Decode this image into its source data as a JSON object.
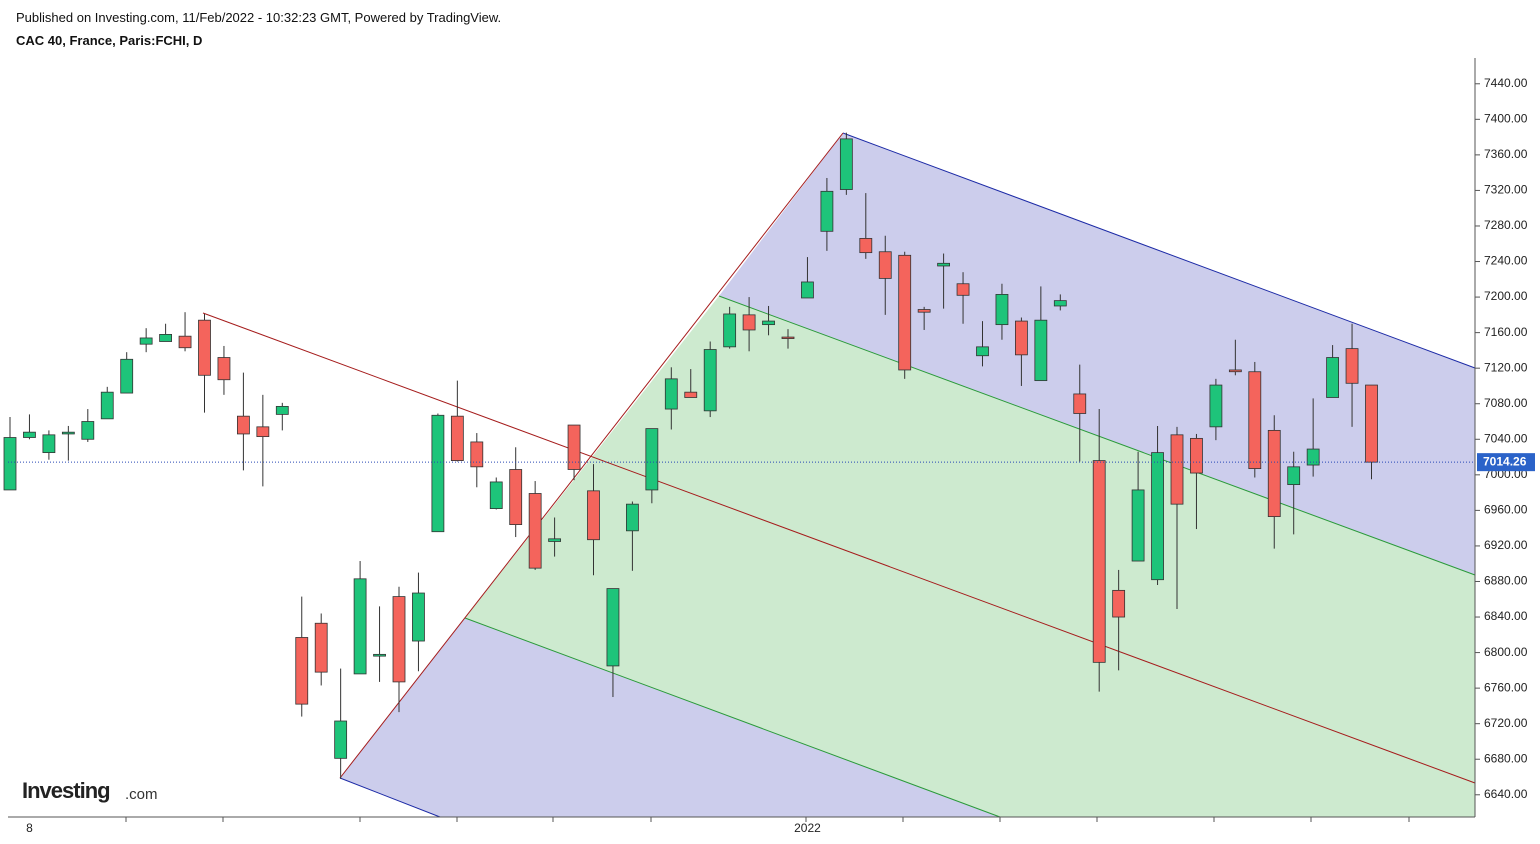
{
  "chart_data": {
    "type": "candlestick",
    "published": "Published on Investing.com, 11/Feb/2022 - 10:32:23 GMT, Powered by TradingView.",
    "title": "CAC 40, France, Paris:FCHI, D",
    "logo": "Investing",
    "logo_suffix": ".com",
    "last_price": 7014.26,
    "up_color": "#1ec47a",
    "down_color": "#f4645c",
    "categories": [
      null,
      "8",
      null,
      null,
      null,
      null,
      null,
      null,
      null,
      null,
      null,
      null,
      null,
      null,
      null,
      null,
      null,
      null,
      null,
      null,
      null,
      null,
      null,
      null,
      null,
      null,
      null,
      null,
      null,
      null,
      null,
      null,
      null,
      null,
      null,
      null,
      null,
      null,
      null,
      null,
      null,
      "2022",
      null,
      null,
      null,
      null,
      null,
      null,
      null,
      null,
      null,
      null,
      null,
      null,
      null,
      null,
      null,
      null,
      null,
      null,
      null,
      null,
      null,
      null,
      null,
      null,
      null,
      null,
      null,
      null,
      null
    ],
    "open": [
      6983,
      7042,
      7025,
      7046,
      7040,
      7063,
      7092,
      7147,
      7150,
      7156,
      7174,
      7132,
      7066,
      7054,
      7068,
      6817,
      6833,
      6681,
      6776,
      6796,
      6863,
      6813,
      6936,
      7066,
      7037,
      6962,
      7006,
      6979,
      6925,
      7056,
      6982,
      6785,
      6937,
      6983,
      7074,
      7093,
      7072,
      7144,
      7180,
      7169,
      7155,
      7199,
      7274,
      7321,
      7266,
      7251,
      7247,
      7186,
      7235,
      7215,
      7134,
      7169,
      7173,
      7106,
      7190,
      7091,
      7016,
      6870,
      6903,
      6882,
      7045,
      7041,
      7054,
      7118,
      7116,
      7050,
      6989,
      7011,
      7087,
      7142,
      7101
    ],
    "high": [
      7065,
      7068,
      7050,
      7055,
      7074,
      7099,
      7138,
      7165,
      7170,
      7183,
      7181,
      7145,
      7115,
      7090,
      7081,
      6863,
      6844,
      6782,
      6903,
      6852,
      6874,
      6890,
      7069,
      7106,
      7047,
      6997,
      7031,
      6993,
      6952,
      7056,
      7012,
      6872,
      6970,
      7052,
      7121,
      7119,
      7150,
      7189,
      7200,
      7190,
      7164,
      7245,
      7334,
      7385,
      7317,
      7269,
      7251,
      7189,
      7249,
      7228,
      7173,
      7215,
      7177,
      7212,
      7203,
      7124,
      7074,
      6893,
      7026,
      7055,
      7054,
      7046,
      7108,
      7152,
      7127,
      7067,
      7026,
      7086,
      7146,
      7170,
      7101
    ],
    "low": [
      6983,
      7040,
      7017,
      7016,
      7037,
      7063,
      7092,
      7138,
      7150,
      7139,
      7070,
      7090,
      7005,
      6987,
      7050,
      6728,
      6763,
      6658,
      6776,
      6767,
      6733,
      6779,
      6936,
      7015,
      6986,
      6961,
      6930,
      6893,
      6908,
      6994,
      6887,
      6750,
      6892,
      6968,
      7051,
      7087,
      7065,
      7142,
      7139,
      7157,
      7142,
      7199,
      7252,
      7315,
      7243,
      7180,
      7108,
      7163,
      7187,
      7170,
      7122,
      7152,
      7100,
      7106,
      7185,
      7015,
      6756,
      6780,
      6903,
      6876,
      6849,
      6939,
      7039,
      7112,
      6997,
      6917,
      6933,
      6998,
      7087,
      7054,
      6995
    ],
    "close": [
      7042,
      7048,
      7045,
      7048,
      7060,
      7093,
      7130,
      7154,
      7158,
      7143,
      7112,
      7107,
      7046,
      7043,
      7077,
      6742,
      6778,
      6723,
      6883,
      6798,
      6767,
      6867,
      7067,
      7016,
      7009,
      6992,
      6944,
      6895,
      6928,
      7006,
      6927,
      6872,
      6967,
      7052,
      7108,
      7087,
      7141,
      7181,
      7163,
      7173,
      7154,
      7217,
      7319,
      7378,
      7250,
      7221,
      7118,
      7183,
      7238,
      7202,
      7144,
      7203,
      7135,
      7174,
      7196,
      7069,
      6789,
      6840,
      6983,
      7025,
      6967,
      7002,
      7101,
      7116,
      7007,
      6953,
      7009,
      7029,
      7132,
      7103,
      7014.26
    ],
    "ylim": [
      6615,
      7469
    ],
    "yticks": [
      {
        "value": 6640,
        "label": "6640.00"
      },
      {
        "value": 6680,
        "label": "6680.00"
      },
      {
        "value": 6720,
        "label": "6720.00"
      },
      {
        "value": 6760,
        "label": "6760.00"
      },
      {
        "value": 6800,
        "label": "6800.00"
      },
      {
        "value": 6840,
        "label": "6840.00"
      },
      {
        "value": 6880,
        "label": "6880.00"
      },
      {
        "value": 6920,
        "label": "6920.00"
      },
      {
        "value": 6960,
        "label": "6960.00"
      },
      {
        "value": 7000,
        "label": "7000.00"
      },
      {
        "value": 7040,
        "label": "7040.00"
      },
      {
        "value": 7080,
        "label": "7080.00"
      },
      {
        "value": 7120,
        "label": "7120.00"
      },
      {
        "value": 7160,
        "label": "7160.00"
      },
      {
        "value": 7200,
        "label": "7200.00"
      },
      {
        "value": 7240,
        "label": "7240.00"
      },
      {
        "value": 7280,
        "label": "7280.00"
      },
      {
        "value": 7320,
        "label": "7320.00"
      },
      {
        "value": 7360,
        "label": "7360.00"
      },
      {
        "value": 7400,
        "label": "7400.00"
      },
      {
        "value": 7440,
        "label": "7440.00"
      }
    ]
  }
}
